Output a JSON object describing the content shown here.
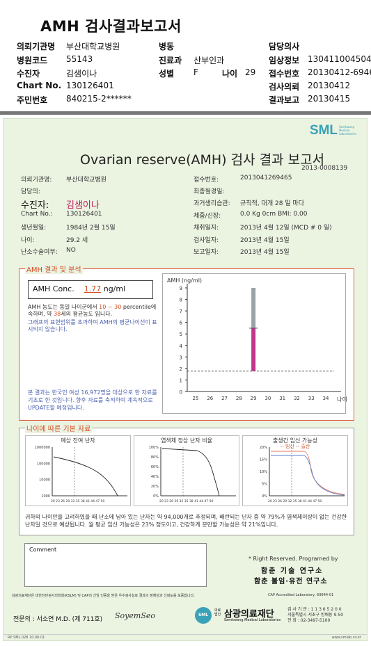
{
  "header": {
    "title": "AMH 검사결과보고서",
    "rows": [
      {
        "l1": "의뢰기관명",
        "v1": "부산대학교병원",
        "l2": "병동",
        "v2": "",
        "l3": "",
        "v3": "",
        "l4": "담당의사",
        "v4": ""
      },
      {
        "l1": "병원코드",
        "v1": "55143",
        "l2": "진료과",
        "v2": "산부인과",
        "l3": "",
        "v3": "",
        "l4": "임상정보",
        "v4": "130411004504"
      },
      {
        "l1": "수진자",
        "v1": "김샘이나",
        "l2": "성별",
        "v2": "F",
        "l3": "나이",
        "v3": "29",
        "l4": "접수번호",
        "v4": "20130412-6946"
      },
      {
        "l1": "Chart No.",
        "v1": "130126401",
        "l2": "",
        "v2": "",
        "l3": "",
        "v3": "",
        "l4": "검사의뢰",
        "v4": "20130412"
      },
      {
        "l1": "주민번호",
        "v1": "840215-2******",
        "l2": "",
        "v2": "",
        "l3": "",
        "v3": "",
        "l4": "결과보고",
        "v4": "20130415"
      }
    ]
  },
  "report": {
    "logo": "SML",
    "logo_sub": "Samkwang Medical Laboratories",
    "title": "Ovarian reserve(AMH) 검사 결과 보고서",
    "doc_no": "2013-0008139",
    "left_info": [
      {
        "label": "의뢰기관명:",
        "value": "부산대학교병원"
      },
      {
        "label": "담당의:",
        "value": ""
      },
      {
        "label": "수진자:",
        "value": "김샘이나"
      },
      {
        "label": "Chart No.:",
        "value": "130126401"
      },
      {
        "label": "생년월일:",
        "value": "1984년 2월 15일"
      },
      {
        "label": "나이:",
        "value": "29.2 세"
      },
      {
        "label": "난소수술여부:",
        "value": "NO"
      }
    ],
    "right_info": [
      {
        "label": "접수번호:",
        "value": "2013041269465"
      },
      {
        "label": "최종월경일:",
        "value": ""
      },
      {
        "label": "과거생리습관:",
        "value": "규칙적, 대개  28 일 마다"
      },
      {
        "label": "체중/신장:",
        "value": "0.0 Kg      0cm    BMI:   0.00"
      },
      {
        "label": "채취일자:",
        "value": "2013년 4월 12일   (MCD #  0 일)"
      },
      {
        "label": "검사일자:",
        "value": "2013년 4월 15일"
      },
      {
        "label": "보고일자:",
        "value": "2013년 4월 15일"
      }
    ],
    "amh_section": {
      "label": "AMH 결과 및 분석",
      "conc_label": "AMH Conc.",
      "conc_value": "1.77",
      "conc_unit": "ng/ml",
      "desc_a": "AMH 농도는 동일 나이군에서",
      "desc_range": "10 ~ 30",
      "desc_b": "percentile에 속하며, 약",
      "desc_age": "38",
      "desc_c": "세의 평균농도 입니다.",
      "desc_d": "그래프의 표현범위를 초과하여 AMH의 평균나이선이 표시되지 않습니다.",
      "desc_note": "본 결과는 한국인 여성 16,972명을 대상으로 한 자료를 기초로 한 것입니다. 향후 자료를 축적하여 계속적으로 UPDATE할 예정입니다."
    },
    "base_section": {
      "label": "나이에 따른 기본 자료",
      "charts": [
        {
          "title": "예상 잔여 난자",
          "ticks": [
            "1000000",
            "100000",
            "10000",
            "1000"
          ]
        },
        {
          "title": "염색체 정상 난자 비율",
          "ticks": [
            "100%",
            "80%",
            "60%",
            "40%",
            "20%",
            "0%"
          ]
        },
        {
          "title": "출생간 임신 가능성",
          "legend": "-- 임신 -- 출산",
          "ticks": [
            "20%",
            "15%",
            "10%",
            "5%",
            "0%"
          ]
        }
      ],
      "xticks": "20 23 26 29 32 35 38 41 44 47 50",
      "summary": "귀하의 나이만을 고려하였을 때 난소에 남아 있는 난자는 약 94,000개로 추정되며, 배란되는 난자 중 약 79%가 염색체이상이 없는 건강한 난자일 것으로 예상됩니다. 월 평균 임신 가능성은 23% 정도이고, 건강하게 분만할 가능성은 약 21%입니다."
    },
    "comment_label": "Comment",
    "rights": "* Right Reserved.  Programed by",
    "org1": "함춘 기술 연구소",
    "org2": "함춘 불임·유전 연구소",
    "accr_left": "삼광의료재단은 대한진단검사의학회(KSLM) 및 CAP의 신임 인증을 받은 우수검사실로 결과의 정확성과 신뢰도를 보증합니다.",
    "accr_right": "CAP  Accredited  Laboratory,   69944-01",
    "specialist": "전문의 : 서소연 M.D. (제 711호)",
    "signature": "SoyemSeo",
    "foundation": "삼광의료재단",
    "foundation_prefix": "의료 법인",
    "foundation_sub": "Samkwang Medical Laboratories",
    "addr": [
      "검 사 기 관 : 1 1 3 6 5 2 0 0",
      "서울특별시 서초구 방배동 9-50",
      "전 화 : 02-3497-5100"
    ],
    "form_no": "RP  SML  028  10.0b.01",
    "website": "www.smlab.co.kr"
  },
  "chart_data": {
    "type": "bar",
    "ylabel": "AMH (ng/ml)",
    "ylim": [
      0,
      9
    ],
    "yticks": [
      0,
      1,
      2,
      3,
      4,
      5,
      6,
      7,
      8,
      9
    ],
    "xticks": [
      25,
      26,
      27,
      28,
      29,
      30,
      31,
      32,
      33,
      34
    ],
    "xlabel": "나이",
    "patient_age": 29,
    "patient_value": 1.77,
    "upper_range": [
      5.5,
      9.0
    ],
    "box_range": [
      1.77,
      5.5
    ],
    "dashed_line": 1.77,
    "colors": {
      "box": "#c2368e",
      "upper": "#9aa3a8",
      "dashed": "#333333"
    }
  }
}
